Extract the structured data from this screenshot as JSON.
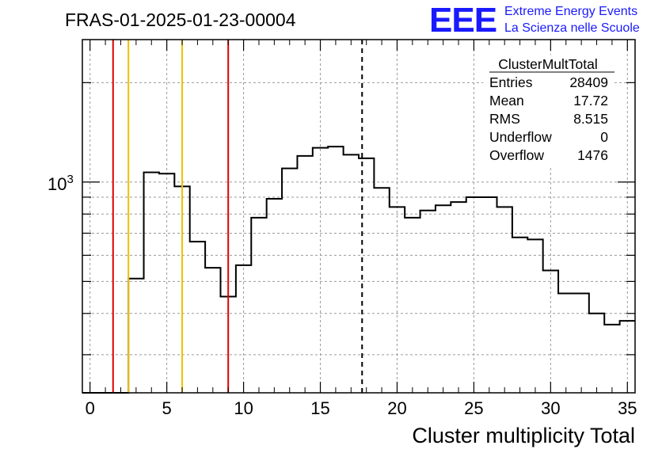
{
  "header": {
    "run_title": "FRAS-01-2025-01-23-00004",
    "logo_text": "EEE",
    "logo_line1": "Extreme Energy Events",
    "logo_line2": "La Scienza nelle Scuole"
  },
  "stats": {
    "name": "ClusterMultTotal",
    "rows": [
      {
        "label": "Entries",
        "value": "28409"
      },
      {
        "label": "Mean",
        "value": "17.72"
      },
      {
        "label": "RMS",
        "value": "8.515"
      },
      {
        "label": "Underflow",
        "value": "0"
      },
      {
        "label": "Overflow",
        "value": "1476"
      }
    ]
  },
  "chart_data": {
    "type": "histogram",
    "title": "",
    "xlabel": "Cluster multiplicity Total",
    "ylabel": "",
    "xlim": [
      -0.5,
      35.5
    ],
    "ylim": [
      230,
      2700
    ],
    "ylog": true,
    "grid": true,
    "x_ticks": [
      "0",
      "5",
      "10",
      "15",
      "20",
      "25",
      "30",
      "35"
    ],
    "y_tick_labels": [
      {
        "value": 1000,
        "label": "10",
        "exponent": "3"
      }
    ],
    "bin_edges": [
      -0.5,
      0.5,
      1.5,
      2.5,
      3.5,
      4.5,
      5.5,
      6.5,
      7.5,
      8.5,
      9.5,
      10.5,
      11.5,
      12.5,
      13.5,
      14.5,
      15.5,
      16.5,
      17.5,
      18.5,
      19.5,
      20.5,
      21.5,
      22.5,
      23.5,
      24.5,
      25.5,
      26.5,
      27.5,
      28.5,
      29.5,
      30.5,
      31.5,
      32.5,
      33.5,
      34.5,
      35.5
    ],
    "values": [
      0,
      0,
      0,
      510,
      1070,
      1060,
      970,
      660,
      550,
      450,
      560,
      780,
      890,
      1100,
      1200,
      1270,
      1280,
      1210,
      1180,
      960,
      840,
      780,
      820,
      850,
      870,
      900,
      900,
      840,
      680,
      670,
      540,
      460,
      460,
      400,
      370,
      380
    ],
    "vertical_lines": [
      {
        "x": 1.5,
        "color": "#e00000",
        "style": "solid"
      },
      {
        "x": 2.5,
        "color": "#f0c000",
        "style": "solid"
      },
      {
        "x": 6.0,
        "color": "#f0c000",
        "style": "solid"
      },
      {
        "x": 9.0,
        "color": "#e00000",
        "style": "solid"
      },
      {
        "x": 17.72,
        "color": "#000000",
        "style": "dashed"
      }
    ],
    "legend_position": "top-right"
  }
}
